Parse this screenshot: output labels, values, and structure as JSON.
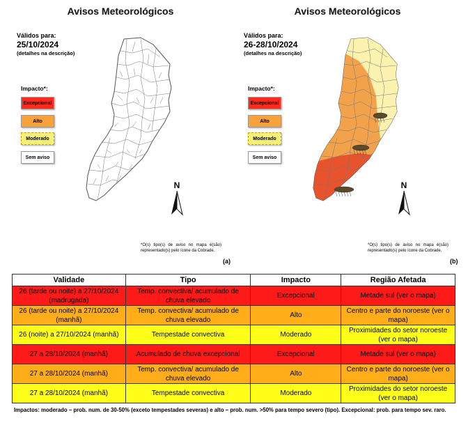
{
  "panels": [
    {
      "title": "Avisos Meteorológicos",
      "valid_label": "Válidos para:",
      "valid_date": "25/10/2024",
      "valid_note": "(detalhes na descrição)",
      "impact_label": "Impacto*:",
      "legend": [
        "Excepcional",
        "Alto",
        "Moderado",
        "Sem aviso"
      ],
      "north": "N",
      "footnote": "*O(s) tipo(s) de aviso no mapa é(são) representado(s) pelo ícone da Cobrade.",
      "letter": "(a)"
    },
    {
      "title": "Avisos Meteorológicos",
      "valid_label": "Válidos para:",
      "valid_date": "26-28/10/2024",
      "valid_note": "(detalhes na descrição)",
      "impact_label": "Impacto*:",
      "legend": [
        "Excepcional",
        "Alto",
        "Moderado",
        "Sem aviso"
      ],
      "north": "N",
      "footnote": "*O(s) tipo(s) de aviso no mapa é(são) representado(s) pelo ícone da Cobrade.",
      "letter": "(b)"
    }
  ],
  "colors": {
    "excepcional": "#ff2a1a",
    "alto": "#f7a23a",
    "moderado": "#f5f07a",
    "sem_aviso": "#ffffff",
    "row_excepcional": "#ff1a1a",
    "row_alto": "#ffae1a",
    "row_moderado": "#ffff1a",
    "map_exc": "#e6532c",
    "map_alto": "#f1a24a",
    "map_mod": "#fbf2b0"
  },
  "table": {
    "headers": [
      "Validade",
      "Tipo",
      "Impacto",
      "Região Afetada"
    ],
    "rows": [
      {
        "level": "excepcional",
        "cells": [
          "26 (tarde ou noite) a 27/10/2024 (madrugada)",
          "Temp. convectiva/ acumulado de chuva elevado",
          "Excepcional",
          "Metade sul (ver o mapa)"
        ]
      },
      {
        "level": "alto",
        "cells": [
          "26 (tarde ou noite) a 27/10/2024 (manhã)",
          "Temp. convectiva/ acumulado de chuva elevado",
          "Alto",
          "Centro e parte do noroeste (ver o mapa)"
        ]
      },
      {
        "level": "moderado",
        "cells": [
          "26 (noite) a 27/10/2024 (manhã)",
          "Tempestade convectiva",
          "Moderado",
          "Proximidades do setor noroeste (ver o mapa)"
        ]
      },
      {
        "level": "excepcional",
        "cells": [
          "27 a 28/10/2024 (manhã)",
          "Acumulado de chuva excepcional",
          "Excepcional",
          "Metade sul (ver o mapa)"
        ]
      },
      {
        "level": "alto",
        "cells": [
          "27 a 28/10/2024 (manhã)",
          "Temp. convectiva/ acumulado de chuva elevado",
          "Alto",
          "Centro e parte do noroeste (ver o mapa)"
        ]
      },
      {
        "level": "moderado",
        "cells": [
          "27 a 28/10/2024 (manhã)",
          "Tempestade convectiva",
          "Moderado",
          "Proximidades do setor noroeste (ver o mapa)"
        ]
      }
    ]
  },
  "caption": "Impactos: moderado – prob. num. de 30-50% (exceto tempestades severas) e alto – prob. num. >50% para tempo severo (tipo). Excepcional: prob. para tempo sev. raro."
}
